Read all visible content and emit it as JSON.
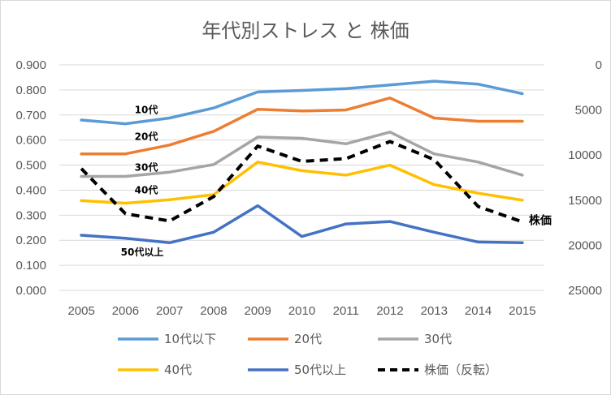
{
  "chart_data": {
    "type": "line",
    "title": "年代別ストレス と 株価",
    "categories": [
      "2005",
      "2006",
      "2007",
      "2008",
      "2009",
      "2010",
      "2011",
      "2012",
      "2013",
      "2014",
      "2015"
    ],
    "y_left": {
      "min": 0,
      "max": 0.9,
      "ticks": [
        0,
        0.1,
        0.2,
        0.3,
        0.4,
        0.5,
        0.6,
        0.7,
        0.8,
        0.9
      ],
      "tick_labels": [
        "0.000",
        "0.100",
        "0.200",
        "0.300",
        "0.400",
        "0.500",
        "0.600",
        "0.700",
        "0.800",
        "0.900"
      ]
    },
    "y_right": {
      "min": 0,
      "max": 25000,
      "reversed": true,
      "ticks": [
        0,
        5000,
        10000,
        15000,
        20000,
        25000
      ],
      "tick_labels": [
        "0",
        "5000",
        "10000",
        "15000",
        "20000",
        "25000"
      ]
    },
    "grid": true,
    "legend_position": "bottom",
    "series": [
      {
        "name": "10代以下",
        "label": "10代",
        "color": "#5B9BD5",
        "axis": "left",
        "dash": false,
        "values": [
          0.68,
          0.665,
          0.688,
          0.728,
          0.792,
          0.798,
          0.805,
          0.82,
          0.835,
          0.823,
          0.785
        ]
      },
      {
        "name": "20代",
        "label": "20代",
        "color": "#ED7D31",
        "axis": "left",
        "dash": false,
        "values": [
          0.545,
          0.545,
          0.58,
          0.635,
          0.723,
          0.716,
          0.72,
          0.768,
          0.688,
          0.675,
          0.675
        ]
      },
      {
        "name": "30代",
        "label": "30代",
        "color": "#A5A5A5",
        "axis": "left",
        "dash": false,
        "values": [
          0.455,
          0.455,
          0.472,
          0.502,
          0.612,
          0.607,
          0.585,
          0.632,
          0.545,
          0.512,
          0.46
        ]
      },
      {
        "name": "40代",
        "label": "40代",
        "color": "#FFC000",
        "axis": "left",
        "dash": false,
        "values": [
          0.358,
          0.348,
          0.362,
          0.382,
          0.512,
          0.478,
          0.46,
          0.5,
          0.422,
          0.388,
          0.36
        ]
      },
      {
        "name": "50代以上",
        "label": "50代以上",
        "color": "#4472C4",
        "axis": "left",
        "dash": false,
        "values": [
          0.22,
          0.208,
          0.19,
          0.232,
          0.338,
          0.215,
          0.265,
          0.275,
          0.232,
          0.193,
          0.19
        ]
      },
      {
        "name": "株価（反転）",
        "label": "株価",
        "color": "#000000",
        "axis": "right",
        "dash": true,
        "values": [
          11500,
          16500,
          17300,
          14600,
          9000,
          10700,
          10400,
          8500,
          10500,
          15700,
          17400
        ]
      }
    ]
  }
}
